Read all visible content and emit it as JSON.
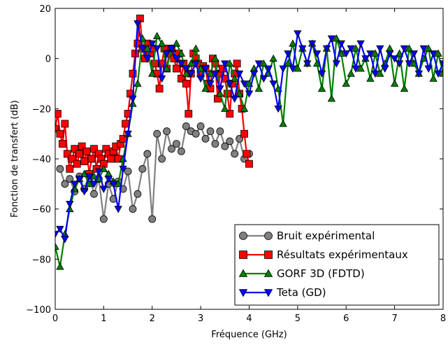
{
  "chart_data": {
    "type": "line",
    "xlabel": "Fréquence (GHz)",
    "ylabel": "Fonction de transfert (dB)",
    "xlim": [
      0,
      8
    ],
    "ylim": [
      -100,
      20
    ],
    "xticks": [
      "0",
      "1",
      "2",
      "3",
      "4",
      "5",
      "6",
      "7",
      "8"
    ],
    "yticks": [
      "−100",
      "−80",
      "−60",
      "−40",
      "−20",
      "0",
      "20"
    ],
    "grid": false,
    "legend_position": "lower-right",
    "series": [
      {
        "name": "Bruit expérimental",
        "color": "#808080",
        "marker": "circle",
        "x": [
          0.1,
          0.2,
          0.3,
          0.4,
          0.5,
          0.6,
          0.7,
          0.8,
          0.9,
          1.0,
          1.1,
          1.2,
          1.3,
          1.4,
          1.5,
          1.6,
          1.7,
          1.8,
          1.9,
          2.0,
          2.1,
          2.2,
          2.3,
          2.4,
          2.5,
          2.6,
          2.7,
          2.8,
          2.9,
          3.0,
          3.1,
          3.2,
          3.3,
          3.4,
          3.5,
          3.6,
          3.7,
          3.8,
          3.9,
          4.0
        ],
        "y": [
          -44,
          -50,
          -48,
          -53,
          -47,
          -52,
          -46,
          -54,
          -48,
          -64,
          -50,
          -56,
          -49,
          -52,
          -45,
          -60,
          -54,
          -44,
          -38,
          -64,
          -30,
          -40,
          -29,
          -36,
          -34,
          -37,
          -27,
          -29,
          -30,
          -27,
          -32,
          -29,
          -34,
          -29,
          -35,
          -33,
          -38,
          -32,
          -40,
          -38
        ]
      },
      {
        "name": "Résultats expérimentaux",
        "color": "#ff0000",
        "marker": "square",
        "x": [
          0.0,
          0.05,
          0.1,
          0.15,
          0.2,
          0.25,
          0.3,
          0.35,
          0.4,
          0.45,
          0.5,
          0.55,
          0.6,
          0.65,
          0.7,
          0.75,
          0.8,
          0.85,
          0.9,
          0.95,
          1.0,
          1.05,
          1.1,
          1.15,
          1.2,
          1.25,
          1.3,
          1.35,
          1.4,
          1.45,
          1.5,
          1.55,
          1.6,
          1.65,
          1.7,
          1.75,
          1.8,
          1.85,
          1.9,
          1.95,
          2.0,
          2.05,
          2.1,
          2.15,
          2.2,
          2.25,
          2.3,
          2.35,
          2.4,
          2.45,
          2.5,
          2.55,
          2.6,
          2.65,
          2.7,
          2.75,
          2.8,
          2.85,
          2.9,
          2.95,
          3.0,
          3.05,
          3.1,
          3.15,
          3.2,
          3.25,
          3.3,
          3.35,
          3.4,
          3.45,
          3.5,
          3.55,
          3.6,
          3.65,
          3.7,
          3.75,
          3.8,
          3.85,
          3.9,
          3.95,
          4.0
        ],
        "y": [
          -28,
          -22,
          -30,
          -34,
          -26,
          -38,
          -44,
          -40,
          -36,
          -42,
          -38,
          -35,
          -41,
          -37,
          -46,
          -40,
          -36,
          -44,
          -38,
          -40,
          -42,
          -36,
          -38,
          -40,
          -37,
          -35,
          -40,
          -34,
          -32,
          -26,
          -22,
          -14,
          -6,
          2,
          6,
          16,
          4,
          0,
          6,
          2,
          4,
          -2,
          -6,
          -12,
          -2,
          4,
          -4,
          2,
          4,
          0,
          -4,
          2,
          -8,
          -2,
          -10,
          -22,
          -6,
          2,
          0,
          -2,
          -6,
          -3,
          -4,
          -10,
          -12,
          0,
          -2,
          -16,
          -6,
          -4,
          -8,
          -14,
          -22,
          -10,
          -6,
          -2,
          -14,
          -20,
          -30,
          -38,
          -42
        ]
      },
      {
        "name": "GORF 3D (FDTD)",
        "color": "#008000",
        "marker": "triangle-up",
        "x": [
          0.0,
          0.1,
          0.2,
          0.3,
          0.4,
          0.5,
          0.6,
          0.7,
          0.8,
          0.9,
          1.0,
          1.1,
          1.2,
          1.3,
          1.4,
          1.5,
          1.6,
          1.7,
          1.8,
          1.9,
          2.0,
          2.1,
          2.2,
          2.3,
          2.4,
          2.5,
          2.6,
          2.7,
          2.8,
          2.9,
          3.0,
          3.1,
          3.2,
          3.3,
          3.4,
          3.5,
          3.6,
          3.7,
          3.8,
          3.9,
          4.0,
          4.1,
          4.2,
          4.3,
          4.4,
          4.5,
          4.6,
          4.7,
          4.8,
          4.9,
          5.0,
          5.1,
          5.2,
          5.3,
          5.4,
          5.5,
          5.6,
          5.7,
          5.8,
          5.9,
          6.0,
          6.1,
          6.2,
          6.3,
          6.4,
          6.5,
          6.6,
          6.7,
          6.8,
          6.9,
          7.0,
          7.1,
          7.2,
          7.3,
          7.4,
          7.5,
          7.6,
          7.7,
          7.8,
          7.9,
          8.0
        ],
        "y": [
          -75,
          -83,
          -70,
          -60,
          -52,
          -48,
          -46,
          -50,
          -47,
          -48,
          -44,
          -46,
          -49,
          -50,
          -40,
          -30,
          -18,
          -10,
          8,
          4,
          -6,
          9,
          6,
          -4,
          4,
          6,
          2,
          -6,
          -2,
          4,
          -4,
          -12,
          -6,
          0,
          -14,
          -20,
          -2,
          -8,
          -14,
          -20,
          -10,
          -4,
          -12,
          -2,
          -6,
          0,
          -12,
          -26,
          -2,
          6,
          -4,
          4,
          -2,
          6,
          -2,
          -12,
          4,
          -16,
          8,
          2,
          -10,
          -6,
          4,
          -4,
          0,
          -8,
          2,
          -6,
          -2,
          4,
          -10,
          2,
          -12,
          4,
          -2,
          -6,
          0,
          4,
          -8,
          2,
          -6
        ]
      },
      {
        "name": "Teta (GD)",
        "color": "#0000ff",
        "marker": "triangle-down",
        "x": [
          0.0,
          0.1,
          0.2,
          0.3,
          0.4,
          0.5,
          0.6,
          0.7,
          0.8,
          0.9,
          1.0,
          1.1,
          1.2,
          1.3,
          1.4,
          1.5,
          1.6,
          1.7,
          1.8,
          1.9,
          2.0,
          2.1,
          2.2,
          2.3,
          2.4,
          2.5,
          2.6,
          2.7,
          2.8,
          2.9,
          3.0,
          3.1,
          3.2,
          3.3,
          3.4,
          3.5,
          3.6,
          3.7,
          3.8,
          3.9,
          4.0,
          4.1,
          4.2,
          4.3,
          4.4,
          4.5,
          4.6,
          4.7,
          4.8,
          4.9,
          5.0,
          5.1,
          5.2,
          5.3,
          5.4,
          5.5,
          5.6,
          5.7,
          5.8,
          5.9,
          6.0,
          6.1,
          6.2,
          6.3,
          6.4,
          6.5,
          6.6,
          6.7,
          6.8,
          6.9,
          7.0,
          7.1,
          7.2,
          7.3,
          7.4,
          7.5,
          7.6,
          7.7,
          7.8,
          7.9,
          8.0
        ],
        "y": [
          -70,
          -68,
          -72,
          -58,
          -50,
          -48,
          -53,
          -47,
          -50,
          -45,
          -52,
          -48,
          -50,
          -60,
          -44,
          -30,
          -16,
          14,
          4,
          0,
          6,
          4,
          -8,
          2,
          4,
          0,
          -2,
          -4,
          -6,
          -2,
          -8,
          -4,
          -10,
          -6,
          -12,
          -2,
          -10,
          -16,
          -6,
          -10,
          -14,
          -6,
          -2,
          -8,
          -4,
          -10,
          -20,
          -4,
          2,
          -4,
          10,
          4,
          -2,
          6,
          2,
          -6,
          4,
          8,
          -2,
          6,
          2,
          4,
          -4,
          6,
          0,
          2,
          -6,
          4,
          -4,
          2,
          0,
          -2,
          4,
          -2,
          2,
          -6,
          4,
          -4,
          2,
          -6,
          -2
        ]
      }
    ]
  }
}
